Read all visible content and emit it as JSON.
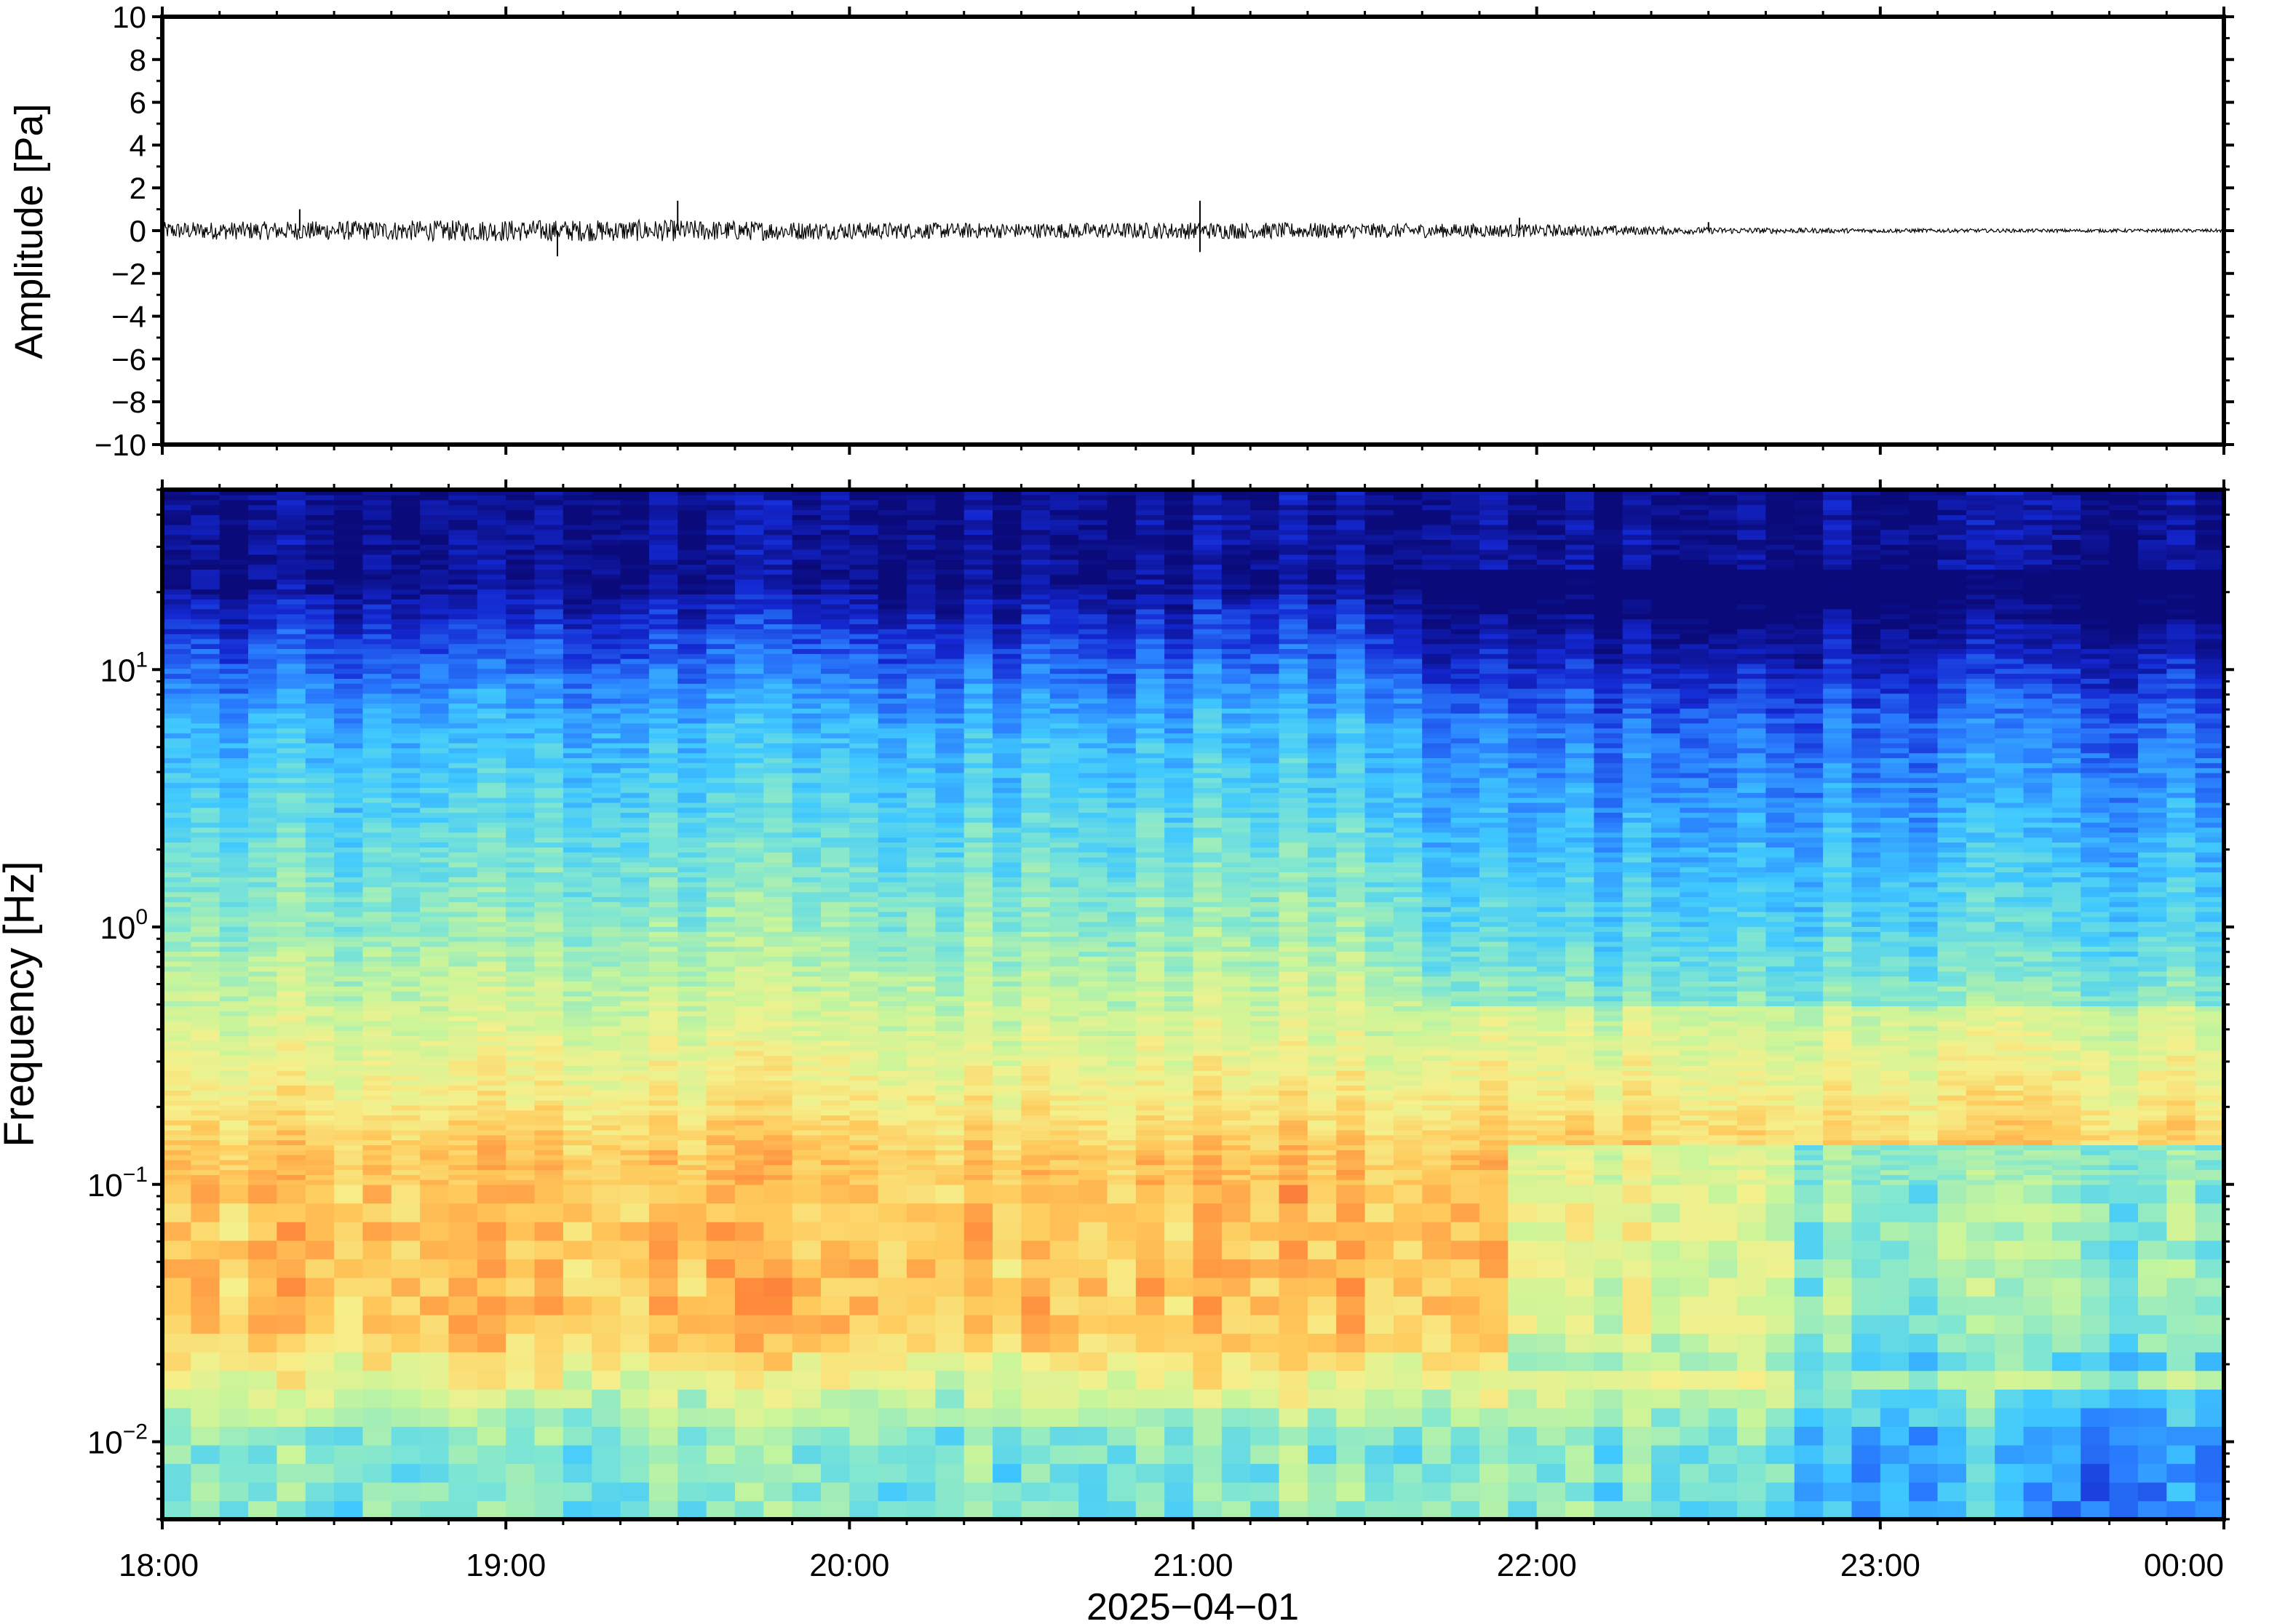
{
  "chart_data": [
    {
      "type": "line",
      "name": "waveform",
      "ylabel": "Amplitude [Pa]",
      "ylim": [
        -10,
        10
      ],
      "yticks": [
        "10",
        "8",
        "6",
        "4",
        "2",
        "0",
        "−2",
        "−4",
        "−6",
        "−8",
        "−10"
      ],
      "ytick_values": [
        10,
        8,
        6,
        4,
        2,
        0,
        -2,
        -4,
        -6,
        -8,
        -10
      ],
      "xlim_hours": [
        18,
        24
      ],
      "noise_envelope": {
        "hours": [
          18.0,
          18.5,
          19.0,
          19.5,
          20.0,
          20.5,
          21.0,
          21.5,
          22.0,
          22.5,
          23.0,
          23.5,
          24.0
        ],
        "amplitude": [
          0.4,
          0.45,
          0.5,
          0.5,
          0.4,
          0.35,
          0.4,
          0.35,
          0.3,
          0.15,
          0.1,
          0.08,
          0.08
        ]
      },
      "spikes": [
        {
          "hour": 18.4,
          "value": 1.0
        },
        {
          "hour": 19.15,
          "value": -1.2
        },
        {
          "hour": 19.5,
          "value": 1.4
        },
        {
          "hour": 21.02,
          "value": 1.4
        },
        {
          "hour": 21.02,
          "value": -1.0
        },
        {
          "hour": 21.95,
          "value": 0.6
        },
        {
          "hour": 22.5,
          "value": 0.4
        }
      ]
    },
    {
      "type": "heatmap",
      "name": "spectrogram",
      "ylabel": "Frequency [Hz]",
      "yscale": "log",
      "ylim": [
        0.005,
        50
      ],
      "yticks": [
        {
          "value": 10,
          "base": "10",
          "exp": "1"
        },
        {
          "value": 1,
          "base": "10",
          "exp": "0"
        },
        {
          "value": 0.1,
          "base": "10",
          "exp": "−1"
        },
        {
          "value": 0.01,
          "base": "10",
          "exp": "−2"
        }
      ],
      "xlim_hours": [
        18,
        24
      ],
      "xticks": [
        "18:00",
        "19:00",
        "20:00",
        "21:00",
        "22:00",
        "23:00",
        "00:00"
      ],
      "xtick_hours": [
        18,
        19,
        20,
        21,
        22,
        23,
        24
      ],
      "xlabel": "2025−04−01",
      "colormap": [
        "#0a0a7a",
        "#1428d2",
        "#2a7fff",
        "#3fc8ff",
        "#7fe6d2",
        "#c8f59a",
        "#f5f08c",
        "#ffc85a",
        "#ff8c3c",
        "#e84632"
      ]
    }
  ]
}
